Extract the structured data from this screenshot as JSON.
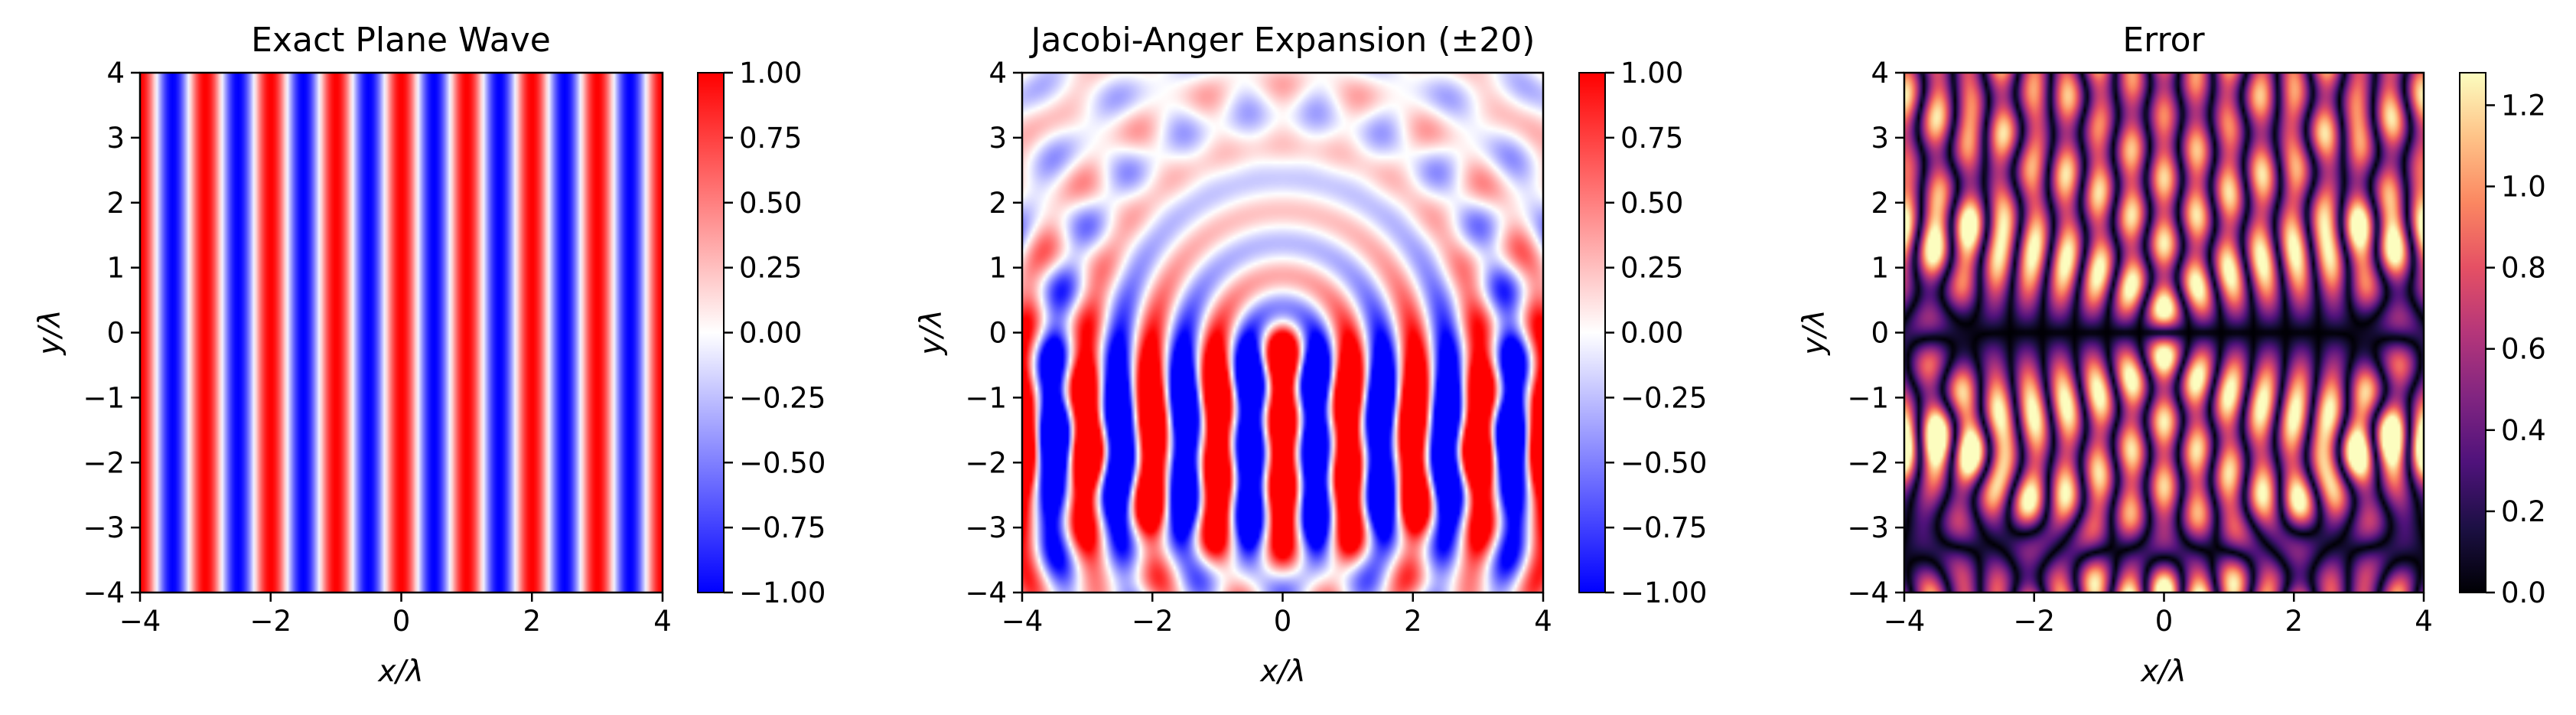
{
  "chart_data": [
    {
      "type": "heatmap",
      "title": "Exact Plane Wave",
      "xlabel": "x/λ",
      "ylabel": "y/λ",
      "xlim": [
        -4,
        4
      ],
      "ylim": [
        -4,
        4
      ],
      "x_ticks": [
        "−4",
        "−2",
        "0",
        "2",
        "4"
      ],
      "y_ticks": [
        "−4",
        "−3",
        "−2",
        "−1",
        "0",
        "1",
        "2",
        "3",
        "4"
      ],
      "field": "cos(2πx/λ)",
      "colormap": "bwr",
      "clim": [
        -1,
        1
      ],
      "colorbar_ticks": [
        "−1.00",
        "−0.75",
        "−0.50",
        "−0.25",
        "0.00",
        "0.25",
        "0.50",
        "0.75",
        "1.00"
      ]
    },
    {
      "type": "heatmap",
      "title": "Jacobi-Anger Expansion (±20)",
      "xlabel": "x/λ",
      "ylabel": "y/λ",
      "xlim": [
        -4,
        4
      ],
      "ylim": [
        -4,
        4
      ],
      "x_ticks": [
        "−4",
        "−2",
        "0",
        "2",
        "4"
      ],
      "y_ticks": [
        "−4",
        "−3",
        "−2",
        "−1",
        "0",
        "1",
        "2",
        "3",
        "4"
      ],
      "field": "Σ_{n=-20..20} iⁿ Jₙ(kr) e^{inθ}, real part",
      "truncation_order": 20,
      "colormap": "bwr",
      "clim": [
        -1,
        1
      ],
      "colorbar_ticks": [
        "−1.00",
        "−0.75",
        "−0.50",
        "−0.25",
        "0.00",
        "0.25",
        "0.50",
        "0.75",
        "1.00"
      ]
    },
    {
      "type": "heatmap",
      "title": "Error",
      "xlabel": "x/λ",
      "ylabel": "y/λ",
      "xlim": [
        -4,
        4
      ],
      "ylim": [
        -4,
        4
      ],
      "x_ticks": [
        "−4",
        "−2",
        "0",
        "2",
        "4"
      ],
      "y_ticks": [
        "−4",
        "−3",
        "−2",
        "−1",
        "0",
        "1",
        "2",
        "3",
        "4"
      ],
      "field": "|exact − expansion|",
      "colormap": "magma",
      "clim": [
        0,
        1.28
      ],
      "colorbar_ticks": [
        "0.0",
        "0.2",
        "0.4",
        "0.6",
        "0.8",
        "1.0",
        "1.2"
      ]
    }
  ]
}
